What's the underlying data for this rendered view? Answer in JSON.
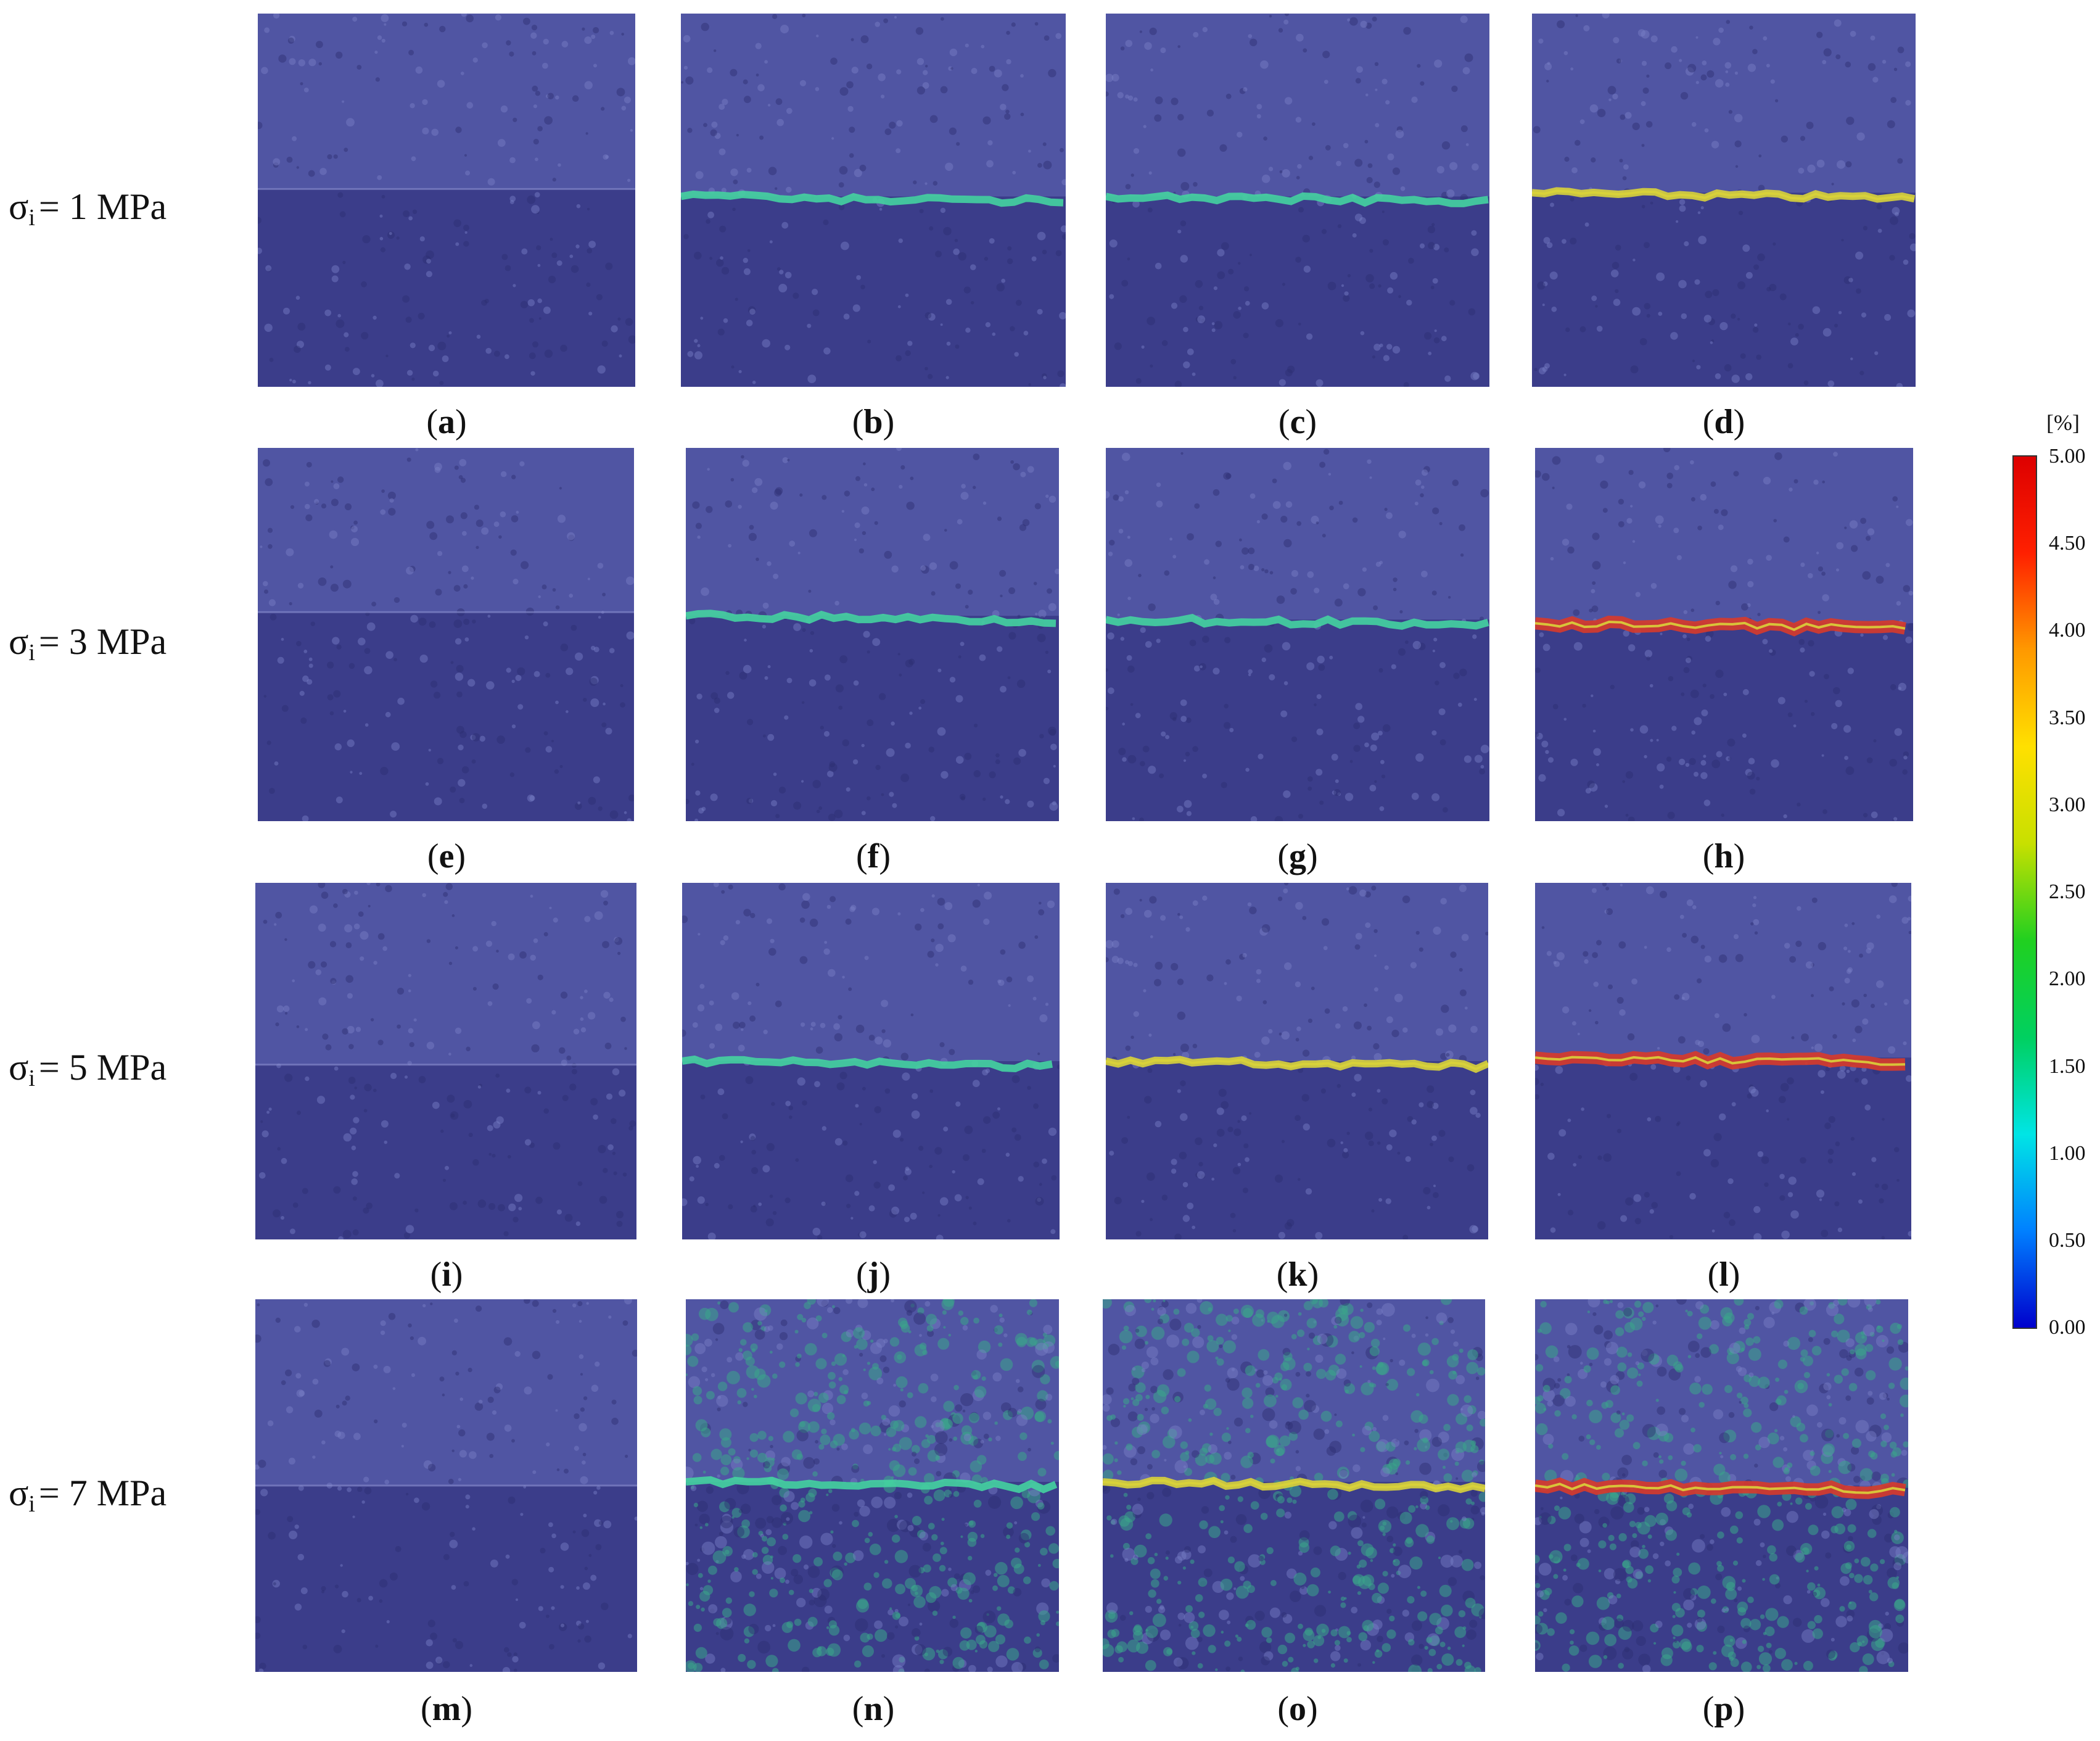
{
  "rows": [
    {
      "sigma": "σ",
      "sub": "i",
      "text": "= 1 MPa",
      "captions": [
        "a",
        "b",
        "c",
        "d"
      ]
    },
    {
      "sigma": "σ",
      "sub": "i",
      "text": "= 3 MPa",
      "captions": [
        "e",
        "f",
        "g",
        "h"
      ]
    },
    {
      "sigma": "σ",
      "sub": "i",
      "text": "= 5 MPa",
      "captions": [
        "i",
        "j",
        "k",
        "l"
      ]
    },
    {
      "sigma": "σ",
      "sub": "i",
      "text": "= 7 MPa",
      "captions": [
        "m",
        "n",
        "o",
        "p"
      ]
    }
  ],
  "colorbar": {
    "unit": "[%]",
    "ticks": [
      "5.00",
      "4.50",
      "4.00",
      "3.50",
      "3.00",
      "2.50",
      "2.00",
      "1.50",
      "1.00",
      "0.50",
      "0.00"
    ],
    "colors": [
      "#0000cc",
      "#0080ff",
      "#00e5e5",
      "#00d060",
      "#20d020",
      "#c8e000",
      "#ffe000",
      "#ff9900",
      "#ff2000",
      "#dd0000"
    ]
  },
  "panel_colors": {
    "base": "#3b3d8a",
    "crack_low": "#45d3a0",
    "crack_mid": "#d9d33a",
    "crack_high": "#d83a2a"
  }
}
